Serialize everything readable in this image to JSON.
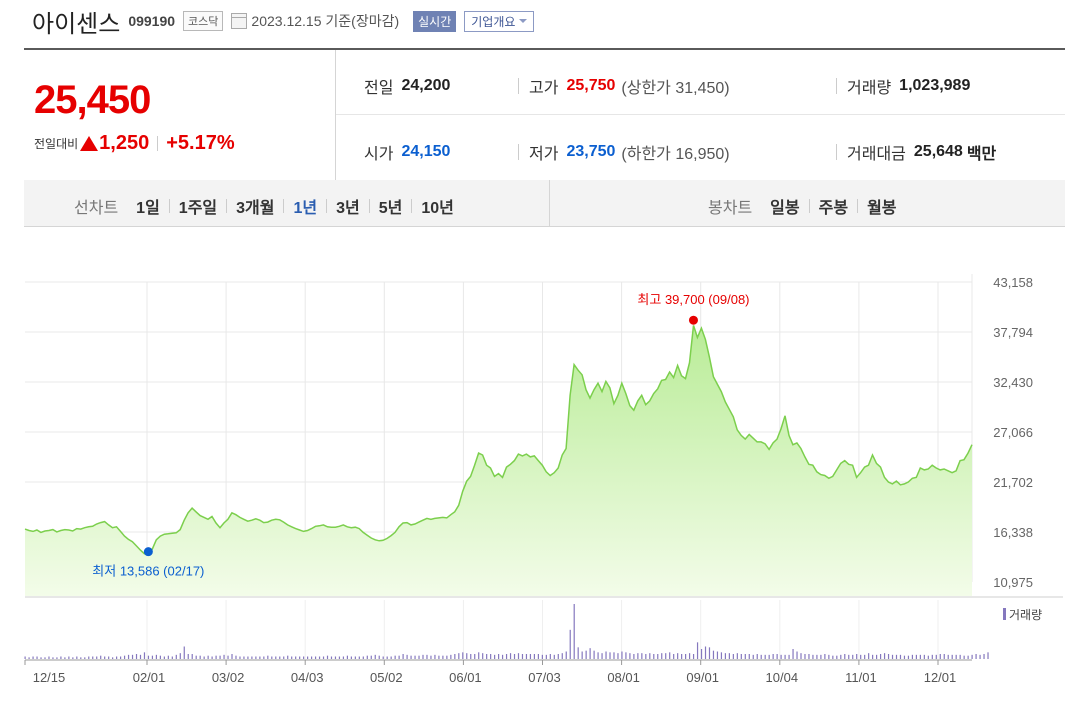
{
  "header": {
    "company": "아이센스",
    "code": "099190",
    "market": "코스닥",
    "date": "2023.12.15",
    "date_suffix": "기준(장마감)",
    "realtime": "실시간",
    "overview": "기업개요"
  },
  "quote": {
    "price": "25,450",
    "change_label": "전일대비",
    "change": "1,250",
    "change_pct": "+5.17%",
    "prev_close_label": "전일",
    "prev_close": "24,200",
    "high_label": "고가",
    "high": "25,750",
    "upper_limit": "(상한가 31,450)",
    "volume_label": "거래량",
    "volume": "1,023,989",
    "open_label": "시가",
    "open": "24,150",
    "low_label": "저가",
    "low": "23,750",
    "lower_limit": "(하한가 16,950)",
    "amount_label": "거래대금",
    "amount": "25,648",
    "amount_unit": "백만"
  },
  "tabs": {
    "line_title": "선차트",
    "line_items": [
      "1일",
      "1주일",
      "3개월",
      "1년",
      "3년",
      "5년",
      "10년"
    ],
    "active": "1년",
    "candle_title": "봉차트",
    "candle_items": [
      "일봉",
      "주봉",
      "월봉"
    ]
  },
  "colors": {
    "up": "#e60000",
    "down": "#0b5fd0",
    "line": "#7ccf4d",
    "area_top": "#b9ec97",
    "area_bottom": "#f3fce9",
    "volume": "#8578be"
  },
  "chart_data": {
    "type": "area",
    "x_ticks": [
      "12/15",
      "02/01",
      "03/02",
      "04/03",
      "05/02",
      "06/01",
      "07/03",
      "08/01",
      "09/01",
      "10/04",
      "11/01",
      "12/01"
    ],
    "y_ticks": [
      "43,158",
      "37,794",
      "32,430",
      "27,066",
      "21,702",
      "16,338",
      "10,975"
    ],
    "ylim": [
      10975,
      43158
    ],
    "max_label": "최고 39,700 (09/08)",
    "min_label": "최저 13,586 (02/17)",
    "max_point": {
      "x": "09/08",
      "y": 39700
    },
    "min_point": {
      "x": "02/17",
      "y": 13586
    },
    "volume_label": "거래량",
    "series": [
      {
        "values": [
          16650,
          16500,
          16400,
          16550,
          16300,
          16450,
          16500,
          16600,
          16350,
          16500,
          16600,
          16550,
          16450,
          16700,
          16650,
          16800,
          16900,
          16950,
          17200,
          17350,
          17450,
          17100,
          16800,
          16900,
          16400,
          15900,
          15550,
          15300,
          14850,
          14400,
          14000,
          13950,
          14500,
          15500,
          15900,
          16100,
          16150,
          16200,
          16250,
          16600,
          17600,
          18400,
          18900,
          18500,
          18100,
          17900,
          17700,
          18000,
          17300,
          16800,
          17300,
          17700,
          18400,
          18200,
          17900,
          17700,
          17500,
          17600,
          17750,
          17600,
          17350,
          17400,
          17600,
          17700,
          17650,
          17400,
          17100,
          16900,
          16700,
          16550,
          16400,
          16500,
          16700,
          16950,
          17000,
          17100,
          16900,
          16850,
          16850,
          16950,
          17100,
          16900,
          16800,
          16850,
          16700,
          16300,
          16000,
          15700,
          15500,
          15400,
          15450,
          15650,
          15950,
          16300,
          16900,
          17300,
          17350,
          17100,
          17200,
          17400,
          17600,
          17800,
          17700,
          17800,
          17850,
          17900,
          17850,
          18200,
          18500,
          19200,
          20700,
          21800,
          22300,
          23500,
          24800,
          24600,
          23500,
          23200,
          22300,
          22600,
          22200,
          23300,
          23600,
          24000,
          24700,
          24500,
          24700,
          24400,
          24500,
          24000,
          23500,
          22800,
          22400,
          22700,
          23200,
          24600,
          25300,
          31000,
          34300,
          33700,
          33200,
          31600,
          30700,
          31600,
          32300,
          31400,
          32500,
          31800,
          30100,
          31000,
          32300,
          31200,
          29900,
          29400,
          30400,
          31000,
          30000,
          30400,
          31200,
          31700,
          32600,
          32700,
          33500,
          32900,
          34200,
          33100,
          32800,
          34500,
          38500,
          37200,
          38200,
          37000,
          35100,
          33000,
          32200,
          31400,
          30300,
          29500,
          28700,
          27300,
          26700,
          26300,
          26800,
          26400,
          26000,
          26000,
          25800,
          25200,
          25900,
          26300,
          27400,
          28800,
          26700,
          25700,
          25900,
          25300,
          24400,
          23600,
          23500,
          22800,
          22500,
          22400,
          22100,
          22300,
          23000,
          23700,
          24000,
          23600,
          23500,
          22200,
          22700,
          23300,
          23500,
          24600,
          23700,
          23300,
          22200,
          21700,
          21500,
          21800,
          21400,
          21500,
          21700,
          22100,
          22200,
          23200,
          23000,
          23100,
          23500,
          23200,
          23000,
          23100,
          22900,
          22700,
          22900,
          24000,
          24100,
          24800,
          25700
        ]
      }
    ],
    "volume": [
      3,
      2,
      3,
      3,
      2,
      2,
      3,
      2,
      2,
      3,
      2,
      3,
      2,
      3,
      2,
      2,
      3,
      3,
      3,
      4,
      3,
      3,
      2,
      3,
      3,
      4,
      5,
      5,
      6,
      5,
      8,
      4,
      4,
      5,
      4,
      3,
      4,
      3,
      5,
      7,
      15,
      6,
      6,
      4,
      4,
      3,
      4,
      3,
      4,
      4,
      5,
      4,
      6,
      4,
      3,
      3,
      3,
      3,
      3,
      3,
      3,
      4,
      3,
      3,
      3,
      3,
      4,
      3,
      3,
      3,
      3,
      3,
      3,
      3,
      3,
      3,
      4,
      3,
      3,
      3,
      3,
      4,
      3,
      3,
      3,
      3,
      4,
      4,
      5,
      4,
      3,
      3,
      3,
      4,
      4,
      6,
      5,
      4,
      4,
      4,
      5,
      5,
      4,
      5,
      4,
      4,
      4,
      5,
      6,
      7,
      8,
      7,
      6,
      6,
      8,
      7,
      6,
      6,
      5,
      6,
      5,
      6,
      7,
      6,
      7,
      6,
      6,
      6,
      6,
      6,
      5,
      5,
      6,
      5,
      6,
      7,
      9,
      35,
      66,
      14,
      9,
      10,
      13,
      10,
      8,
      7,
      9,
      8,
      8,
      7,
      9,
      8,
      7,
      6,
      7,
      7,
      6,
      7,
      6,
      6,
      7,
      7,
      8,
      6,
      7,
      6,
      6,
      7,
      6,
      20,
      12,
      15,
      14,
      10,
      9,
      8,
      7,
      7,
      6,
      7,
      6,
      6,
      6,
      5,
      6,
      5,
      5,
      5,
      6,
      6,
      5,
      5,
      5,
      12,
      9,
      7,
      6,
      6,
      5,
      5,
      5,
      6,
      5,
      4,
      4,
      5,
      6,
      5,
      5,
      6,
      5,
      5,
      7,
      5,
      5,
      6,
      7,
      6,
      5,
      5,
      5,
      4,
      4,
      5,
      5,
      5,
      5,
      4,
      5,
      5,
      6,
      6,
      5,
      5,
      5,
      5,
      4,
      4,
      5,
      6,
      5,
      6,
      8
    ]
  }
}
